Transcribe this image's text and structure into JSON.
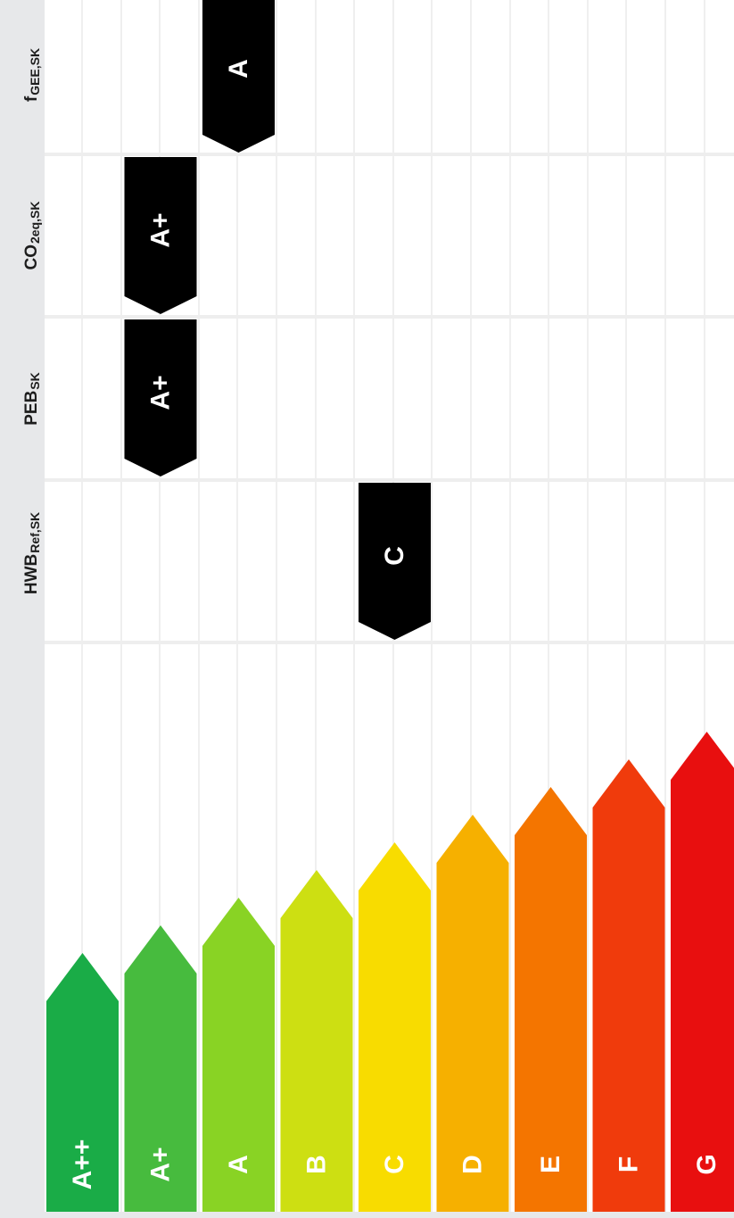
{
  "indicators": [
    {
      "id": "hwb",
      "label_main": "HWB",
      "label_sub": "Ref,SK",
      "rating": "C"
    },
    {
      "id": "peb",
      "label_main": "PEB",
      "label_sub": "SK",
      "rating": "A+"
    },
    {
      "id": "co2",
      "label_main": "CO",
      "label_sub": "2eq,SK",
      "rating": "A+"
    },
    {
      "id": "fgee",
      "label_main": "f",
      "label_sub": "GEE,SK",
      "rating": "A"
    }
  ],
  "scale": {
    "classes": [
      {
        "label": "A++",
        "color": "#1aac47"
      },
      {
        "label": "A+",
        "color": "#47bb3e"
      },
      {
        "label": "A",
        "color": "#89d324"
      },
      {
        "label": "B",
        "color": "#cddf12"
      },
      {
        "label": "C",
        "color": "#f8dc00"
      },
      {
        "label": "D",
        "color": "#f6b000"
      },
      {
        "label": "E",
        "color": "#f47500"
      },
      {
        "label": "F",
        "color": "#f03b0c"
      },
      {
        "label": "G",
        "color": "#e80f0f"
      }
    ]
  },
  "colors": {
    "marker": "#000000",
    "background": "#ffffff",
    "sidebar": "#e7e8ea"
  }
}
